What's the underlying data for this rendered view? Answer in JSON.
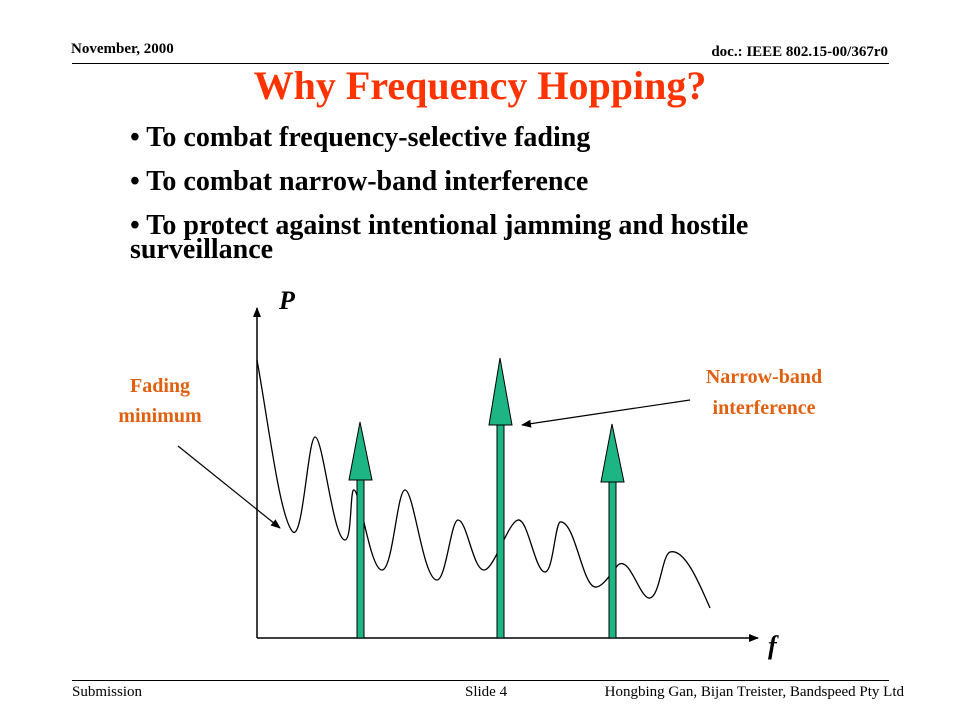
{
  "header": {
    "date": "November, 2000",
    "doc": "doc.: IEEE 802.15-00/367r0"
  },
  "title": "Why Frequency Hopping?",
  "bullets": [
    "To combat frequency-selective fading",
    "To combat narrow-band interference",
    "To protect against intentional jamming and hostile surveillance"
  ],
  "diagram": {
    "y_axis_label": "P",
    "x_axis_label": "f",
    "fading_label": [
      "Fading",
      "minimum"
    ],
    "interference_label": [
      "Narrow-band",
      "interference"
    ],
    "label_color": "#E06010",
    "arrow_color": "#1DB584",
    "arrow_count": 3
  },
  "footer": {
    "left": "Submission",
    "center": "Slide 4",
    "right": "Hongbing Gan, Bijan Treister, Bandspeed Pty Ltd"
  }
}
